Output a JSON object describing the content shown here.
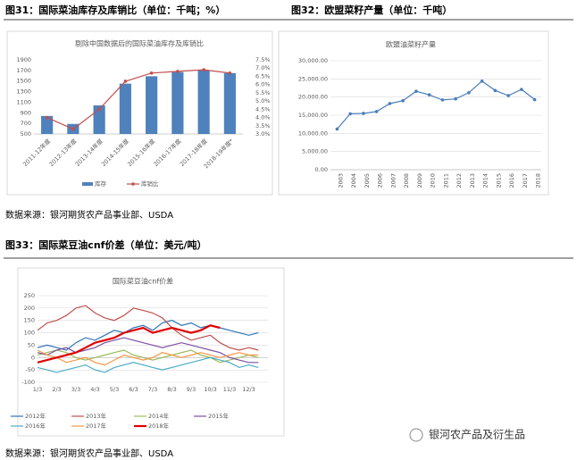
{
  "document": {
    "fig31_caption": "图31：国际菜油库存及库销比（单位：千吨；%）",
    "fig32_caption": "图32：欧盟菜籽产量（单位：千吨）",
    "source1": "数据来源：银河期货农产品事业部、USDA",
    "fig33_caption": "图33：国际菜豆油cnf价差（单位：美元/吨）",
    "source2": "数据来源：银河期货农产品事业部、USDA",
    "watermark": "银河农产品及衍生品"
  },
  "chart_data": [
    {
      "type": "bar",
      "title": "剔除中国数据后的国际菜油库存及库销比",
      "categories": [
        "2011-12年度",
        "2012-13年度",
        "2013-14年度",
        "2014-15年度",
        "2015-16年度",
        "2016-17年度",
        "2017-18年度",
        "2018-19年度*"
      ],
      "series": [
        {
          "name": "库存",
          "type": "bar",
          "color": "#4f81bd",
          "values": [
            840,
            690,
            1040,
            1450,
            1590,
            1670,
            1700,
            1650
          ]
        },
        {
          "name": "库销比",
          "type": "line",
          "axis": "y2",
          "color": "#c0504d",
          "markers": true,
          "values": [
            4.0,
            3.3,
            4.5,
            6.2,
            6.7,
            6.8,
            6.9,
            6.7
          ]
        }
      ],
      "ylim": [
        500,
        1900
      ],
      "yticks": [
        500,
        700,
        900,
        1100,
        1300,
        1500,
        1700,
        1900
      ],
      "y2lim": [
        3.0,
        7.5
      ],
      "y2ticks": [
        {
          "value": 3.0,
          "label": "3.0%"
        },
        {
          "value": 3.5,
          "label": "3.5%"
        },
        {
          "value": 4.0,
          "label": "4.0%"
        },
        {
          "value": 4.5,
          "label": "4.5%"
        },
        {
          "value": 5.0,
          "label": "5.0%"
        },
        {
          "value": 5.5,
          "label": "5.5%"
        },
        {
          "value": 6.0,
          "label": "6.0%"
        },
        {
          "value": 6.5,
          "label": "6.5%"
        },
        {
          "value": 7.0,
          "label": "7.0%"
        },
        {
          "value": 7.5,
          "label": "7.5%"
        }
      ],
      "grid": false
    },
    {
      "type": "line",
      "title": "欧盟油菜籽产量",
      "categories": [
        "2003",
        "2004",
        "2005",
        "2006",
        "2007",
        "2008",
        "2009",
        "2010",
        "2011",
        "2012",
        "2013",
        "2014",
        "2015",
        "2016",
        "2017",
        "2018"
      ],
      "series": [
        {
          "name": "欧盟油菜籽产量",
          "color": "#4a7ebb",
          "markers": true,
          "values": [
            11200,
            15400,
            15500,
            16000,
            18200,
            19000,
            21600,
            20600,
            19200,
            19500,
            21200,
            24400,
            21800,
            20400,
            22100,
            19300
          ]
        }
      ],
      "ylim": [
        0,
        30000
      ],
      "yticks": [
        {
          "value": 0,
          "label": "0.00"
        },
        {
          "value": 5000,
          "label": "5,000.00"
        },
        {
          "value": 10000,
          "label": "10,000.00"
        },
        {
          "value": 15000,
          "label": "15,000.00"
        },
        {
          "value": 20000,
          "label": "20,000.00"
        },
        {
          "value": 25000,
          "label": "25,000.00"
        },
        {
          "value": 30000,
          "label": "30,000.00"
        }
      ],
      "grid": true
    },
    {
      "type": "line",
      "title": "国际菜豆油cnf价差",
      "categories": [
        "1/3",
        null,
        "2/3",
        null,
        "3/3",
        null,
        "4/3",
        null,
        "5/3",
        null,
        "6/3",
        null,
        "7/3",
        null,
        "8/3",
        null,
        "9/3",
        null,
        "10/3",
        null,
        "11/3",
        null,
        "12/3",
        null
      ],
      "series": [
        {
          "name": "2012年",
          "color": "#2e75b6",
          "values": [
            40,
            50,
            40,
            30,
            60,
            80,
            70,
            90,
            110,
            100,
            120,
            130,
            110,
            140,
            150,
            130,
            140,
            120,
            130,
            120,
            110,
            100,
            90,
            100
          ]
        },
        {
          "name": "2013年",
          "color": "#c0504d",
          "values": [
            110,
            140,
            150,
            170,
            200,
            210,
            180,
            160,
            150,
            170,
            200,
            190,
            180,
            160,
            120,
            90,
            70,
            80,
            90,
            60,
            40,
            30,
            40,
            30
          ]
        },
        {
          "name": "2014年",
          "color": "#9bbb59",
          "values": [
            10,
            20,
            30,
            20,
            0,
            -10,
            0,
            10,
            20,
            30,
            10,
            0,
            -10,
            0,
            10,
            20,
            30,
            10,
            0,
            -20,
            -10,
            0,
            10,
            0
          ]
        },
        {
          "name": "2015年",
          "color": "#7f4fa0",
          "values": [
            20,
            10,
            30,
            40,
            20,
            30,
            40,
            60,
            70,
            80,
            70,
            60,
            50,
            40,
            50,
            60,
            50,
            40,
            30,
            20,
            0,
            -10,
            -20,
            -20
          ]
        },
        {
          "name": "2016年",
          "color": "#4bacc6",
          "values": [
            -40,
            -50,
            -60,
            -50,
            -40,
            -30,
            -50,
            -60,
            -40,
            -30,
            -20,
            -30,
            -40,
            -50,
            -40,
            -30,
            -20,
            -10,
            0,
            -10,
            -20,
            -40,
            -30,
            -40
          ]
        },
        {
          "name": "2017年",
          "color": "#f79646",
          "values": [
            30,
            10,
            0,
            -20,
            -10,
            0,
            -20,
            -30,
            -10,
            10,
            0,
            -10,
            0,
            20,
            10,
            0,
            10,
            20,
            10,
            0,
            10,
            20,
            10,
            10
          ]
        },
        {
          "name": "2018年",
          "color": "#e00000",
          "width": 2.2,
          "values": [
            -20,
            -10,
            0,
            10,
            20,
            40,
            60,
            70,
            80,
            100,
            110,
            120,
            100,
            110,
            120,
            110,
            100,
            110,
            130,
            120,
            null,
            null,
            null,
            null
          ]
        }
      ],
      "ylim": [
        -100,
        250
      ],
      "yticks": [
        -100,
        -50,
        0,
        50,
        100,
        150,
        200,
        250
      ],
      "grid": true
    }
  ]
}
